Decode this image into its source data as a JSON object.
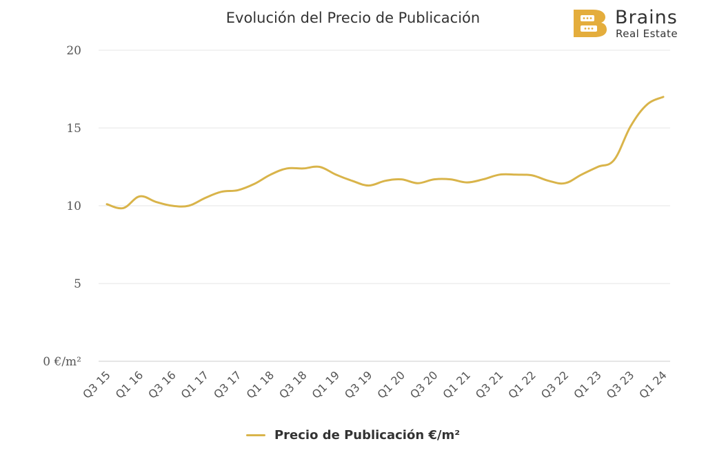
{
  "logo": {
    "name": "Brains",
    "subtitle": "Real Estate",
    "color": "#e4ad3c"
  },
  "chart_data": {
    "type": "line",
    "title": "Evolución del Precio de Publicación",
    "xlabel": "",
    "ylabel": "",
    "ylim": [
      0,
      20
    ],
    "yticks": [
      "0 €/m²",
      "5",
      "10",
      "15",
      "20"
    ],
    "yticks_values": [
      0,
      5,
      10,
      15,
      20
    ],
    "grid": true,
    "legend_position": "bottom",
    "categories": [
      "Q3 15",
      "Q4 15",
      "Q1 16",
      "Q2 16",
      "Q3 16",
      "Q4 16",
      "Q1 17",
      "Q2 17",
      "Q3 17",
      "Q4 17",
      "Q1 18",
      "Q2 18",
      "Q3 18",
      "Q4 18",
      "Q1 19",
      "Q2 19",
      "Q3 19",
      "Q4 19",
      "Q1 20",
      "Q2 20",
      "Q3 20",
      "Q4 20",
      "Q1 21",
      "Q2 21",
      "Q3 21",
      "Q4 21",
      "Q1 22",
      "Q2 22",
      "Q3 22",
      "Q4 22",
      "Q1 23",
      "Q2 23",
      "Q3 23",
      "Q4 23",
      "Q1 24"
    ],
    "xtick_labels": [
      "Q3 15",
      "Q1 16",
      "Q3 16",
      "Q1 17",
      "Q3 17",
      "Q1 18",
      "Q3 18",
      "Q1 19",
      "Q3 19",
      "Q1 20",
      "Q3 20",
      "Q1 21",
      "Q3 21",
      "Q1 22",
      "Q3 22",
      "Q1 23",
      "Q3 23",
      "Q1 24"
    ],
    "series": [
      {
        "name": "Precio de Publicación €/m²",
        "color": "#d9b44a",
        "values": [
          10.1,
          9.85,
          10.6,
          10.25,
          10.0,
          10.0,
          10.5,
          10.9,
          11.0,
          11.4,
          12.0,
          12.4,
          12.4,
          12.5,
          12.0,
          11.6,
          11.3,
          11.6,
          11.7,
          11.45,
          11.7,
          11.7,
          11.5,
          11.7,
          12.0,
          12.0,
          11.95,
          11.6,
          11.45,
          12.0,
          12.5,
          12.95,
          15.1,
          16.5,
          17.0
        ]
      }
    ]
  }
}
